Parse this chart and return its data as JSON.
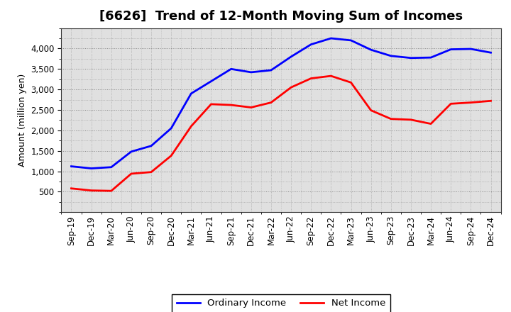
{
  "title": "[6626]  Trend of 12-Month Moving Sum of Incomes",
  "ylabel": "Amount (million yen)",
  "x_labels": [
    "Sep-19",
    "Dec-19",
    "Mar-20",
    "Jun-20",
    "Sep-20",
    "Dec-20",
    "Mar-21",
    "Jun-21",
    "Sep-21",
    "Dec-21",
    "Mar-22",
    "Jun-22",
    "Sep-22",
    "Dec-22",
    "Mar-23",
    "Jun-23",
    "Sep-23",
    "Dec-23",
    "Mar-24",
    "Jun-24",
    "Sep-24",
    "Dec-24"
  ],
  "ordinary_income": [
    1120,
    1070,
    1100,
    1480,
    1620,
    2050,
    2900,
    3200,
    3500,
    3420,
    3470,
    3800,
    4100,
    4250,
    4200,
    3970,
    3820,
    3770,
    3780,
    3980,
    3990,
    3900
  ],
  "net_income": [
    580,
    530,
    520,
    940,
    980,
    1380,
    2100,
    2640,
    2620,
    2560,
    2680,
    3050,
    3270,
    3330,
    3170,
    2490,
    2280,
    2260,
    2160,
    2650,
    2680,
    2720
  ],
  "ordinary_color": "#0000FF",
  "net_color": "#FF0000",
  "background_color": "#FFFFFF",
  "plot_bg_color": "#DCDCDC",
  "ylim_min": 0,
  "ylim_max": 4500,
  "yticks": [
    500,
    1000,
    1500,
    2000,
    2500,
    3000,
    3500,
    4000
  ],
  "legend_labels": [
    "Ordinary Income",
    "Net Income"
  ],
  "title_fontsize": 13,
  "axis_fontsize": 9,
  "tick_fontsize": 8.5,
  "line_width": 2.0
}
